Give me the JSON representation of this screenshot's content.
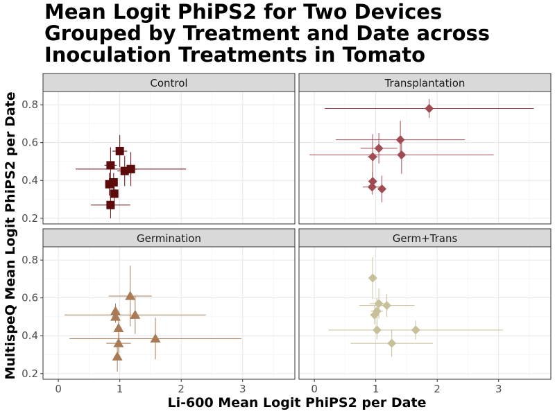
{
  "title": {
    "line1": "Mean Logit PhiPS2 for Two Devices",
    "line2": "Grouped by Treatment and Date across",
    "line3": "Inoculation Treatments in Tomato"
  },
  "chart_data": {
    "type": "scatter",
    "xlabel": "Li-600 Mean Logit PhiPS2 per Date",
    "ylabel": "MultispeQ Mean Logit PhiPS2 per Date",
    "xlim": [
      -0.25,
      3.85
    ],
    "ylim": [
      0.17,
      0.87
    ],
    "xticks": [
      "0",
      "1",
      "2",
      "3"
    ],
    "xtick_values": [
      0,
      1,
      2,
      3
    ],
    "yticks": [
      "0.2",
      "0.4",
      "0.6",
      "0.8"
    ],
    "ytick_values": [
      0.2,
      0.4,
      0.6,
      0.8
    ],
    "grid": true,
    "legend": "none",
    "panels": [
      {
        "name": "Control",
        "shape": "square",
        "color": "#5c0a0a",
        "points": [
          {
            "x": 1.0,
            "y": 0.555,
            "xerr": 0.12,
            "yerr": 0.085
          },
          {
            "x": 0.85,
            "y": 0.48,
            "xerr": 0.1,
            "yerr": 0.095
          },
          {
            "x": 1.18,
            "y": 0.46,
            "xerr": 0.1,
            "yerr": 0.09
          },
          {
            "x": 1.08,
            "y": 0.45,
            "xerr": 0.12,
            "yerr": 0.08
          },
          {
            "x": 1.18,
            "y": 0.46,
            "xerr": 0.9,
            "yerr": 0.03
          },
          {
            "x": 0.9,
            "y": 0.39,
            "xerr": 0.05,
            "yerr": 0.05
          },
          {
            "x": 0.83,
            "y": 0.38,
            "xerr": 0.05,
            "yerr": 0.06
          },
          {
            "x": 0.91,
            "y": 0.33,
            "xerr": 0.05,
            "yerr": 0.04
          },
          {
            "x": 0.85,
            "y": 0.27,
            "xerr": 0.32,
            "yerr": 0.07
          }
        ]
      },
      {
        "name": "Transplantation",
        "shape": "diamond",
        "color": "#a04a52",
        "points": [
          {
            "x": 1.87,
            "y": 0.78,
            "xerr": 1.7,
            "yerr": 0.05
          },
          {
            "x": 1.4,
            "y": 0.615,
            "xerr": 1.05,
            "yerr": 0.1
          },
          {
            "x": 1.05,
            "y": 0.57,
            "xerr": 0.3,
            "yerr": 0.08
          },
          {
            "x": 0.95,
            "y": 0.525,
            "xerr": 0.08,
            "yerr": 0.12
          },
          {
            "x": 1.42,
            "y": 0.535,
            "xerr": 1.5,
            "yerr": 0.1
          },
          {
            "x": 0.95,
            "y": 0.395,
            "xerr": 0.05,
            "yerr": 0.05
          },
          {
            "x": 0.94,
            "y": 0.365,
            "xerr": 0.15,
            "yerr": 0.04
          },
          {
            "x": 1.1,
            "y": 0.355,
            "xerr": 0.05,
            "yerr": 0.07
          }
        ]
      },
      {
        "name": "Germination",
        "shape": "triangle",
        "color": "#a87a55",
        "points": [
          {
            "x": 1.17,
            "y": 0.61,
            "xerr": 0.35,
            "yerr": 0.16
          },
          {
            "x": 0.93,
            "y": 0.53,
            "xerr": 0.05,
            "yerr": 0.04
          },
          {
            "x": 1.25,
            "y": 0.51,
            "xerr": 1.15,
            "yerr": 0.1
          },
          {
            "x": 0.93,
            "y": 0.5,
            "xerr": 0.05,
            "yerr": 0.03
          },
          {
            "x": 0.98,
            "y": 0.44,
            "xerr": 0.05,
            "yerr": 0.06
          },
          {
            "x": 1.58,
            "y": 0.385,
            "xerr": 1.4,
            "yerr": 0.11
          },
          {
            "x": 0.98,
            "y": 0.36,
            "xerr": 0.2,
            "yerr": 0.05
          },
          {
            "x": 0.96,
            "y": 0.29,
            "xerr": 0.05,
            "yerr": 0.08
          }
        ]
      },
      {
        "name": "Germ+Trans",
        "shape": "diamond",
        "color": "#c7c09a",
        "points": [
          {
            "x": 0.95,
            "y": 0.705,
            "xerr": 0.06,
            "yerr": 0.11
          },
          {
            "x": 1.05,
            "y": 0.57,
            "xerr": 0.15,
            "yerr": 0.08
          },
          {
            "x": 1.18,
            "y": 0.56,
            "xerr": 0.45,
            "yerr": 0.06
          },
          {
            "x": 1.02,
            "y": 0.53,
            "xerr": 0.1,
            "yerr": 0.07
          },
          {
            "x": 0.98,
            "y": 0.51,
            "xerr": 0.06,
            "yerr": 0.05
          },
          {
            "x": 1.65,
            "y": 0.43,
            "xerr": 1.42,
            "yerr": 0.05
          },
          {
            "x": 1.02,
            "y": 0.43,
            "xerr": 0.1,
            "yerr": 0.05
          },
          {
            "x": 1.26,
            "y": 0.36,
            "xerr": 0.67,
            "yerr": 0.07
          }
        ]
      }
    ]
  }
}
